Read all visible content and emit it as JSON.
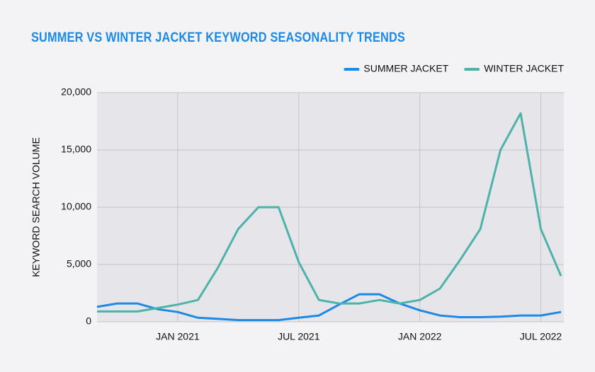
{
  "chart_data": {
    "type": "line",
    "title": "SUMMER VS WINTER JACKET KEYWORD SEASONALITY TRENDS",
    "y_label": "KEYWORD SEARCH VOLUME",
    "x": [
      "2020-09",
      "2020-10",
      "2020-11",
      "2020-12",
      "2021-01",
      "2021-02",
      "2021-03",
      "2021-04",
      "2021-05",
      "2021-06",
      "2021-07",
      "2021-08",
      "2021-09",
      "2021-10",
      "2021-11",
      "2021-12",
      "2022-01",
      "2022-02",
      "2022-03",
      "2022-04",
      "2022-05",
      "2022-06",
      "2022-07",
      "2022-08"
    ],
    "series": [
      {
        "name": "SUMMER JACKET",
        "color": "#1a8ae6",
        "values": [
          1300,
          1600,
          1600,
          1100,
          850,
          350,
          250,
          150,
          150,
          150,
          350,
          550,
          1500,
          2400,
          2400,
          1600,
          1000,
          550,
          400,
          400,
          450,
          550,
          550,
          850
        ]
      },
      {
        "name": "WINTER JACKET",
        "color": "#4db3a8",
        "values": [
          900,
          900,
          900,
          1200,
          1500,
          1900,
          4750,
          8100,
          10000,
          10000,
          5200,
          1900,
          1600,
          1600,
          1900,
          1600,
          1900,
          2900,
          5400,
          8100,
          15000,
          18200,
          8100,
          4000
        ]
      }
    ],
    "xlim": [
      "2020-09",
      "2022-08"
    ],
    "xticks": [
      {
        "value": "2021-01",
        "label": "JAN 2021"
      },
      {
        "value": "2021-07",
        "label": "JUL 2021"
      },
      {
        "value": "2022-01",
        "label": "JAN 2022"
      },
      {
        "value": "2022-07",
        "label": "JUL 2022"
      }
    ],
    "ylim": [
      0,
      20000
    ],
    "yticks": [
      {
        "value": 0,
        "label": "0"
      },
      {
        "value": 5000,
        "label": "5,000"
      },
      {
        "value": 10000,
        "label": "10,000"
      },
      {
        "value": 15000,
        "label": "15,000"
      },
      {
        "value": 20000,
        "label": "20,000"
      }
    ],
    "grid": true,
    "legend": "top-right"
  }
}
